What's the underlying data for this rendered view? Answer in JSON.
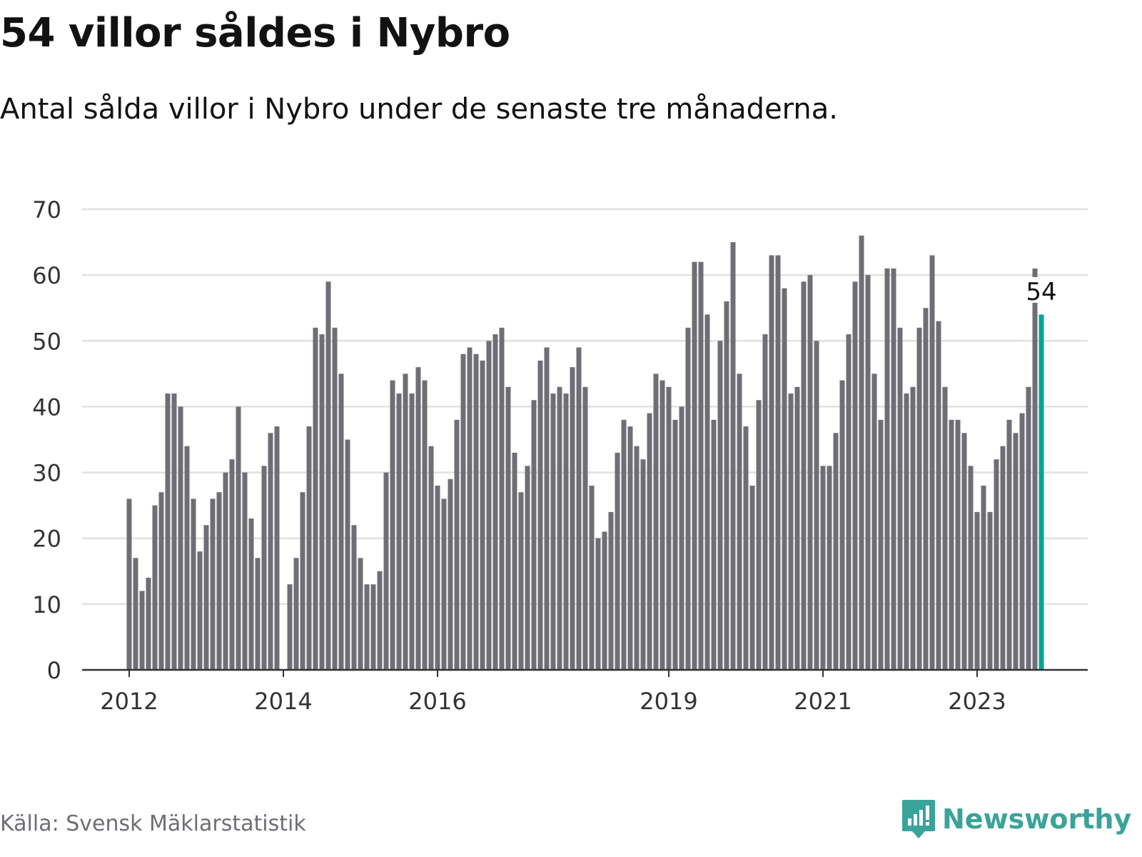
{
  "header": {
    "title": "54 villor såldes i Nybro",
    "subtitle": "Antal sålda villor i Nybro under de senaste tre månaderna."
  },
  "footer": {
    "source": "Källa: Svensk Mäklarstatistik",
    "brand": "Newsworthy"
  },
  "colors": {
    "bar": "#6f6e74",
    "highlight": "#00a599",
    "grid": "#e0e0e0",
    "brand": "#3aa39a"
  },
  "chart_data": {
    "type": "bar",
    "title": "54 villor såldes i Nybro",
    "xlabel": "",
    "ylabel": "",
    "ylim": [
      0,
      70
    ],
    "yticks": [
      "0",
      "10",
      "20",
      "30",
      "40",
      "50",
      "60",
      "70"
    ],
    "xticks": [
      {
        "label": "2012",
        "index": 0
      },
      {
        "label": "2014",
        "index": 24
      },
      {
        "label": "2016",
        "index": 48
      },
      {
        "label": "2019",
        "index": 84
      },
      {
        "label": "2021",
        "index": 108
      },
      {
        "label": "2023",
        "index": 132
      }
    ],
    "start": "2012-01",
    "grid": true,
    "annotation": {
      "index": 142,
      "label": "54"
    },
    "values": [
      26,
      17,
      12,
      14,
      25,
      27,
      42,
      42,
      40,
      34,
      26,
      18,
      22,
      26,
      27,
      30,
      32,
      40,
      30,
      23,
      17,
      31,
      36,
      37,
      0,
      13,
      17,
      27,
      37,
      52,
      51,
      59,
      52,
      45,
      35,
      22,
      17,
      13,
      13,
      15,
      30,
      44,
      42,
      45,
      42,
      46,
      44,
      34,
      28,
      26,
      29,
      38,
      48,
      49,
      48,
      47,
      50,
      51,
      52,
      43,
      33,
      27,
      31,
      41,
      47,
      49,
      42,
      43,
      42,
      46,
      49,
      43,
      28,
      20,
      21,
      24,
      33,
      38,
      37,
      34,
      32,
      39,
      45,
      44,
      43,
      38,
      40,
      52,
      62,
      62,
      54,
      38,
      50,
      56,
      65,
      45,
      37,
      28,
      41,
      51,
      63,
      63,
      58,
      42,
      43,
      59,
      60,
      50,
      31,
      31,
      36,
      44,
      51,
      59,
      66,
      60,
      45,
      38,
      61,
      61,
      52,
      42,
      43,
      52,
      55,
      63,
      53,
      43,
      38,
      38,
      36,
      31,
      24,
      28,
      24,
      32,
      34,
      38,
      36,
      39,
      43,
      61,
      54
    ]
  }
}
